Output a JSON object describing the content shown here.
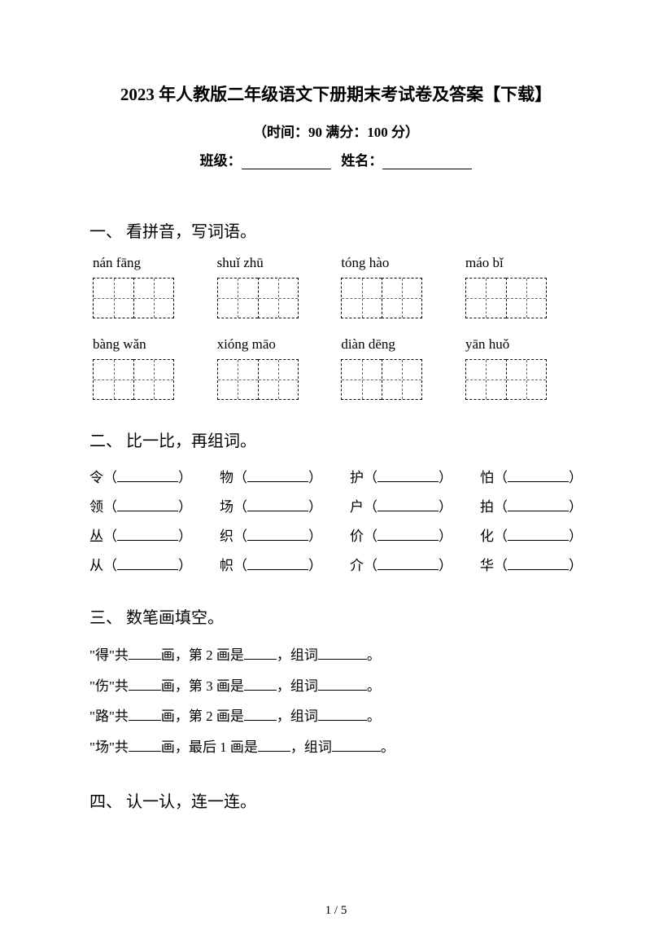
{
  "header": {
    "title": "2023 年人教版二年级语文下册期末考试卷及答案【下载】",
    "subtitle": "（时间：90   满分：100 分）",
    "class_label": "班级：",
    "name_label": "姓名："
  },
  "section1": {
    "heading": "一、 看拼音，写词语。",
    "row1": [
      "nán  fāng",
      "shuǐ  zhū",
      "tóng  hào",
      "máo  bǐ"
    ],
    "row2": [
      "bàng wǎn",
      "xióng māo",
      "diàn dēng",
      "yān  huǒ"
    ]
  },
  "section2": {
    "heading": "二、 比一比，再组词。",
    "rows": [
      [
        "令",
        "物",
        "护",
        "怕"
      ],
      [
        "领",
        "场",
        "户",
        "拍"
      ],
      [
        "丛",
        "织",
        "价",
        "化"
      ],
      [
        "从",
        "帜",
        "介",
        "华"
      ]
    ]
  },
  "section3": {
    "heading": "三、 数笔画填空。",
    "lines": [
      {
        "char": "\"得\"",
        "mid": "画，第 2 画是",
        "end": "，组词",
        "dot": "。"
      },
      {
        "char": "\"伤\"",
        "mid": "画，第 3 画是",
        "end": "，组词",
        "dot": "。"
      },
      {
        "char": "\"路\"",
        "mid": "画，第 2 画是",
        "end": "，组词",
        "dot": "。"
      },
      {
        "char": "\"场\"",
        "mid": "画，最后 1 画是",
        "end": "，组词",
        "dot": "。"
      }
    ]
  },
  "section4": {
    "heading": "四、 认一认，连一连。"
  },
  "footer": {
    "page": "1  /  5"
  }
}
